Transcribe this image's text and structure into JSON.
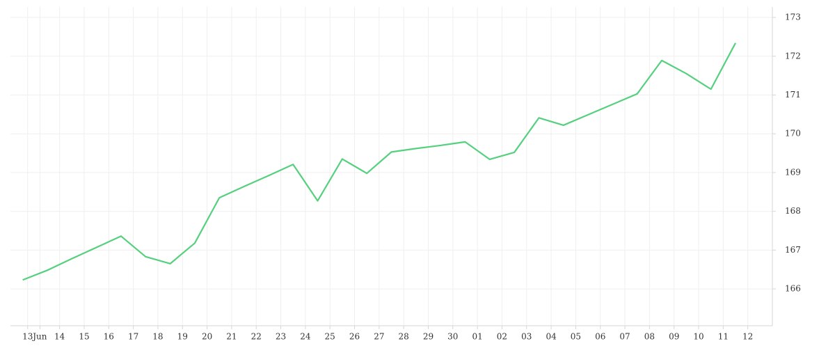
{
  "chart_data": {
    "type": "line",
    "x": [
      -0.5,
      0.5,
      1.5,
      2.5,
      3.5,
      4.5,
      5.5,
      6.5,
      7.5,
      8.5,
      9.5,
      10.5,
      11.5,
      12.5,
      13.5,
      14.5,
      15.5,
      16.5,
      17.5,
      18.5,
      19.5,
      20.5,
      21.5,
      22.5,
      23.5,
      24.5,
      25.5,
      26.5,
      27.5,
      28.5
    ],
    "series": [
      {
        "color": "#55d07e",
        "values": [
          166.23,
          166.48,
          166.78,
          167.07,
          167.36,
          166.83,
          166.65,
          167.18,
          168.35,
          168.64,
          168.92,
          169.21,
          168.27,
          169.35,
          168.98,
          169.53,
          169.62,
          169.7,
          169.79,
          169.34,
          169.52,
          170.41,
          170.22,
          170.49,
          170.76,
          171.03,
          171.89,
          171.55,
          171.15,
          172.34
        ]
      }
    ],
    "xlim": [
      -1,
      30
    ],
    "xticks": [
      {
        "value": -0.3,
        "label": "13"
      },
      {
        "value": 0.2,
        "label": "Jun"
      },
      {
        "value": 1,
        "label": "14"
      },
      {
        "value": 2,
        "label": "15"
      },
      {
        "value": 3,
        "label": "16"
      },
      {
        "value": 4,
        "label": "17"
      },
      {
        "value": 5,
        "label": "18"
      },
      {
        "value": 6,
        "label": "19"
      },
      {
        "value": 7,
        "label": "20"
      },
      {
        "value": 8,
        "label": "21"
      },
      {
        "value": 9,
        "label": "22"
      },
      {
        "value": 10,
        "label": "23"
      },
      {
        "value": 11,
        "label": "24"
      },
      {
        "value": 12,
        "label": "25"
      },
      {
        "value": 13,
        "label": "26"
      },
      {
        "value": 14,
        "label": "27"
      },
      {
        "value": 15,
        "label": "28"
      },
      {
        "value": 16,
        "label": "29"
      },
      {
        "value": 17,
        "label": "30"
      },
      {
        "value": 18,
        "label": "01"
      },
      {
        "value": 19,
        "label": "02"
      },
      {
        "value": 20,
        "label": "03"
      },
      {
        "value": 21,
        "label": "04"
      },
      {
        "value": 22,
        "label": "05"
      },
      {
        "value": 23,
        "label": "06"
      },
      {
        "value": 24,
        "label": "07"
      },
      {
        "value": 25,
        "label": "08"
      },
      {
        "value": 26,
        "label": "09"
      },
      {
        "value": 27,
        "label": "10"
      },
      {
        "value": 28,
        "label": "11"
      },
      {
        "value": 29,
        "label": "12"
      }
    ],
    "ylim": [
      165.05,
      173.27
    ],
    "yticks": [
      166,
      167,
      168,
      169,
      170,
      171,
      172,
      173
    ],
    "grid": true
  }
}
